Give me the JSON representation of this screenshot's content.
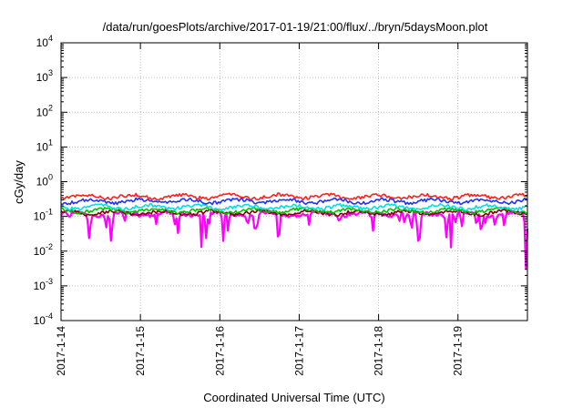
{
  "chart_data": {
    "type": "line",
    "title": "/data/run/goesPlots/archive/2017-01-19/21:00/flux/../bryn/5daysMoon.plot",
    "xlabel": "Coordinated Universal Time (UTC)",
    "ylabel": "cGy/day",
    "yscale": "log",
    "ylim": [
      0.0001,
      10000
    ],
    "ytick_labels": [
      {
        "base": "10",
        "exp": "-4"
      },
      {
        "base": "10",
        "exp": "-3"
      },
      {
        "base": "10",
        "exp": "-2"
      },
      {
        "base": "10",
        "exp": "-1"
      },
      {
        "base": "10",
        "exp": "0"
      },
      {
        "base": "10",
        "exp": "1"
      },
      {
        "base": "10",
        "exp": "2"
      },
      {
        "base": "10",
        "exp": "3"
      },
      {
        "base": "10",
        "exp": "4"
      }
    ],
    "xlim": [
      "2017-01-14 00:00",
      "2017-01-19 21:00"
    ],
    "xtick_labels": [
      "2017-1-14",
      "2017-1-15",
      "2017-1-16",
      "2017-1-17",
      "2017-1-18",
      "2017-1-19"
    ],
    "grid": true,
    "legend": "none",
    "series": [
      {
        "color": "#ff00ff",
        "typical": 0.12,
        "min": 0.028,
        "description_of_shape": "lower envelope with frequent dips"
      },
      {
        "color": "#800000",
        "typical": 0.13
      },
      {
        "color": "#00c000",
        "typical": 0.15
      },
      {
        "color": "#00e0e0",
        "typical": 0.19
      },
      {
        "color": "#2030ff",
        "typical": 0.28
      },
      {
        "color": "#ff2020",
        "typical": 0.38
      }
    ]
  }
}
